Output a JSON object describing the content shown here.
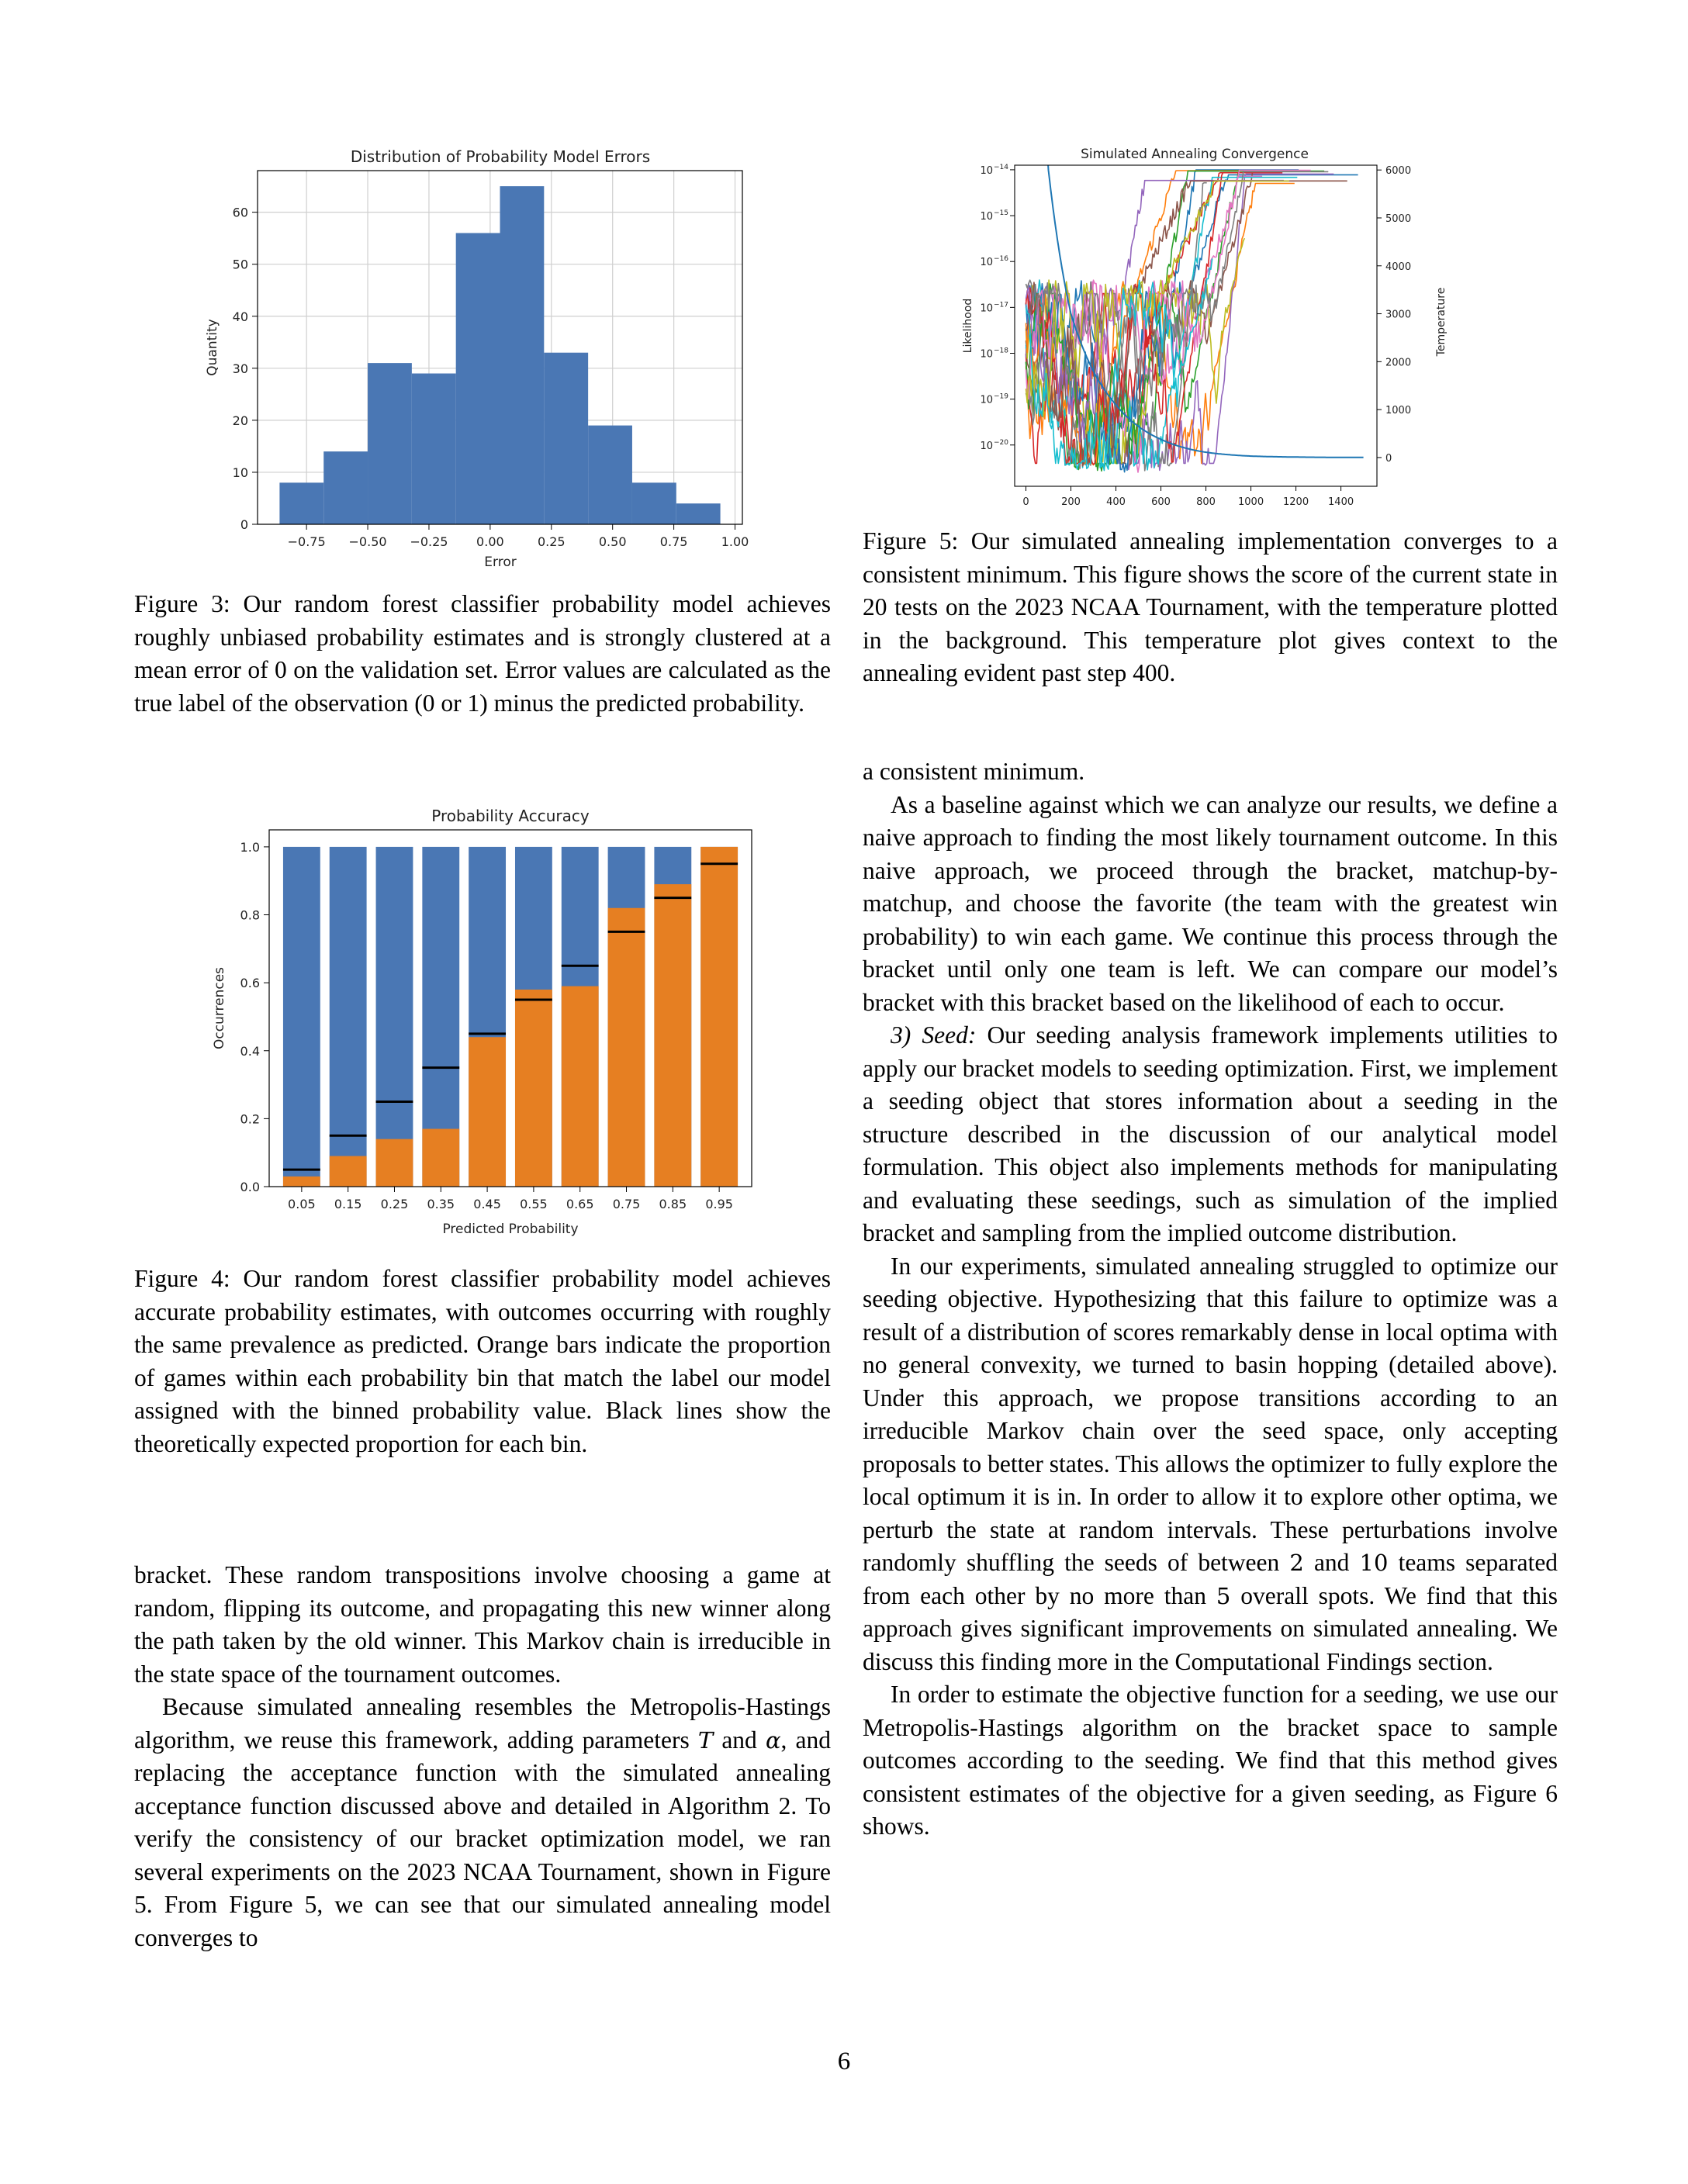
{
  "figure3": {
    "caption": "Figure 3: Our random forest classifier probability model achieves roughly unbiased probability estimates and is strongly clustered at a mean error of 0 on the validation set. Error values are calculated as the true label of the observation (0 or 1) minus the predicted probability.",
    "chart_data": {
      "type": "bar",
      "title": "Distribution of Probability Model Errors",
      "xlabel": "Error",
      "ylabel": "Quantity",
      "bin_edges": [
        -0.86,
        -0.68,
        -0.5,
        -0.32,
        -0.14,
        0.04,
        0.22,
        0.4,
        0.58,
        0.76,
        0.94
      ],
      "values": [
        8,
        14,
        31,
        29,
        56,
        65,
        33,
        19,
        8,
        4
      ],
      "xticks": [
        "-0.75",
        "-0.50",
        "-0.25",
        "0.00",
        "0.25",
        "0.50",
        "0.75",
        "1.00"
      ],
      "yticks": [
        "0",
        "10",
        "20",
        "30",
        "40",
        "50",
        "60"
      ],
      "xlim": [
        -0.95,
        1.03
      ],
      "ylim": [
        0,
        68
      ],
      "grid": true,
      "color": "#4a77b4"
    }
  },
  "figure4": {
    "caption": "Figure 4: Our random forest classifier probability model achieves accurate probability estimates, with outcomes occurring with roughly the same prevalence as predicted. Orange bars indicate the proportion of games within each probability bin that match the label our model assigned with the binned probability value. Black lines show the theoretically expected proportion for each bin.",
    "chart_data": {
      "type": "bar",
      "title": "Probability Accuracy",
      "xlabel": "Predicted Probability",
      "ylabel": "Occurrences",
      "categories": [
        "0.05",
        "0.15",
        "0.25",
        "0.35",
        "0.45",
        "0.55",
        "0.65",
        "0.75",
        "0.85",
        "0.95"
      ],
      "series": [
        {
          "color": "#4a77b4",
          "values": [
            1,
            1,
            1,
            1,
            1,
            1,
            1,
            1,
            1,
            1
          ]
        },
        {
          "color": "#e67f22",
          "values": [
            0.03,
            0.09,
            0.14,
            0.17,
            0.44,
            0.58,
            0.59,
            0.82,
            0.89,
            1.0
          ]
        }
      ],
      "expected": [
        0.05,
        0.15,
        0.25,
        0.35,
        0.45,
        0.55,
        0.65,
        0.75,
        0.85,
        0.95
      ],
      "yticks": [
        "0.0",
        "0.2",
        "0.4",
        "0.6",
        "0.8",
        "1.0"
      ],
      "ylim": [
        0,
        1.05
      ],
      "grid": false
    }
  },
  "figure5": {
    "caption": "Figure 5: Our simulated annealing implementation converges to a consistent minimum. This figure shows the score of the current state in 20 tests on the 2023 NCAA Tournament, with the temperature plotted in the background. This temperature plot gives context to the annealing evident past step 400.",
    "chart_data": {
      "type": "line",
      "title": "Simulated Annealing Convergence",
      "xlabel": "",
      "ylabel": "Likelihood",
      "y2label": "Temperature",
      "xticks": [
        "0",
        "200",
        "400",
        "600",
        "800",
        "1000",
        "1200",
        "1400"
      ],
      "yticks_left_exponents": [
        -20,
        -19,
        -18,
        -17,
        -16,
        -15,
        -14
      ],
      "yticks_right": [
        "0",
        "1000",
        "2000",
        "3000",
        "4000",
        "5000",
        "6000"
      ],
      "xlim": [
        -50,
        1560
      ],
      "ylim_log10": [
        -20.9,
        -13.9
      ],
      "y2lim": [
        -600,
        6100
      ],
      "y_scale": "log",
      "n_tests": 20,
      "converged_log10_range": [
        -14.3,
        -14.0
      ],
      "temperature_curve": {
        "x": [
          0,
          100,
          200,
          300,
          400,
          500,
          600,
          700,
          800,
          900,
          1000,
          1200,
          1400,
          1500
        ],
        "y": [
          20000,
          6000,
          3000,
          1800,
          1100,
          650,
          380,
          210,
          110,
          60,
          30,
          10,
          3,
          2
        ]
      },
      "line_colors": [
        "#1f77b4",
        "#ff7f0e",
        "#2ca02c",
        "#d62728",
        "#9467bd",
        "#8c564b",
        "#e377c2",
        "#7f7f7f",
        "#bcbd22",
        "#17becf"
      ]
    }
  },
  "body_right": {
    "p0": "a consistent minimum.",
    "p1": "As a baseline against which we can analyze our results, we define a naive approach to finding the most likely tournament outcome. In this naive approach, we proceed through the bracket, matchup-by-matchup, and choose the favorite (the team with the greatest win probability) to win each game. We continue this process through the bracket until only one team is left. We can compare our model’s bracket with this bracket based on the likelihood of each to occur.",
    "p2_title": "3) Seed:",
    "p2": "Our seeding analysis framework implements utilities to apply our bracket models to seeding optimization. First, we implement a seeding object that stores information about a seeding in the structure described in the discussion of our analytical model formulation. This object also implements methods for manipulating and evaluating these seedings, such as simulation of the implied bracket and sampling from the implied outcome distribution.",
    "p3": "In our experiments, simulated annealing struggled to optimize our seeding objective. Hypothesizing that this failure to optimize was a result of a distribution of scores remarkably dense in local optima with no general convexity, we turned to basin hopping (detailed above). Under this approach, we propose transitions according to an irreducible Markov chain over the seed space, only accepting proposals to better states. This allows the optimizer to fully explore the local optimum it is in. In order to allow it to explore other optima, we perturb the state at random intervals. These perturbations involve randomly shuffling the seeds of between",
    "p3_n1": "2",
    "p3_mid": "and",
    "p3_n2": "10",
    "p3_mid2": "teams separated from each other by no more than",
    "p3_n3": "5",
    "p3_end": "overall spots. We find that this approach gives significant improvements on simulated annealing. We discuss this finding more in the Computational Findings section.",
    "p4": "In order to estimate the objective function for a seeding, we use our Metropolis-Hastings algorithm on the bracket space to sample outcomes according to the seeding. We find that this method gives consistent estimates of the objective for a given seeding, as Figure 6 shows."
  },
  "body_left": {
    "p0": "bracket. These random transpositions involve choosing a game at random, flipping its outcome, and propagating this new winner along the path taken by the old winner. This Markov chain is irreducible in the state space of the tournament outcomes.",
    "p1a": "Because simulated annealing resembles the Metropolis-Hastings algorithm, we reuse this framework, adding parameters",
    "p1_T": "T",
    "p1_and": "and",
    "p1_alpha": "α",
    "p1b": ", and replacing the acceptance function with the simulated annealing acceptance function discussed above and detailed in Algorithm 2. To verify the consistency of our bracket optimization model, we ran several experiments on the 2023 NCAA Tournament, shown in Figure 5. From Figure 5, we can see that our simulated annealing model converges to"
  },
  "page_number": "6"
}
